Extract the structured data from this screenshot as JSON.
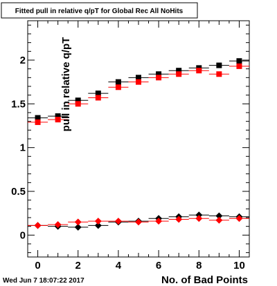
{
  "chart_data": {
    "type": "scatter",
    "title": "Fitted pull in relative q/pT for Global Rec All NoHits",
    "xlabel": "No. of Bad Points",
    "ylabel": "pull in relative q/pT",
    "xlim": [
      -0.5,
      10.5
    ],
    "ylim": [
      -0.25,
      2.45
    ],
    "xticks": [
      "0",
      "2",
      "4",
      "6",
      "8",
      "10"
    ],
    "xtick_values": [
      0,
      2,
      4,
      6,
      8,
      10
    ],
    "yticks": [
      "0",
      "0.5",
      "1",
      "1.5",
      "2"
    ],
    "ytick_values": [
      0,
      0.5,
      1,
      1.5,
      2
    ],
    "x_error_half_width": 0.5,
    "grid": false,
    "x": [
      0,
      1,
      2,
      3,
      4,
      5,
      6,
      7,
      8,
      9,
      10
    ],
    "series": [
      {
        "color": "#000000",
        "marker": "square",
        "values": [
          1.34,
          1.36,
          1.54,
          1.62,
          1.75,
          1.8,
          1.84,
          1.88,
          1.91,
          1.94,
          1.99
        ]
      },
      {
        "color": "#ff0000",
        "marker": "square",
        "values": [
          1.29,
          1.32,
          1.5,
          1.57,
          1.69,
          1.75,
          1.8,
          1.84,
          1.88,
          1.84,
          1.93
        ]
      },
      {
        "color": "#000000",
        "marker": "diamond",
        "values": [
          0.11,
          0.1,
          0.09,
          0.11,
          0.15,
          0.16,
          0.19,
          0.21,
          0.23,
          0.22,
          0.21
        ]
      },
      {
        "color": "#ff0000",
        "marker": "diamond",
        "values": [
          0.11,
          0.12,
          0.15,
          0.16,
          0.16,
          0.15,
          0.16,
          0.18,
          0.19,
          0.17,
          0.19
        ]
      }
    ]
  },
  "footer": {
    "timestamp": "Wed Jun  7 18:07:22 2017"
  }
}
